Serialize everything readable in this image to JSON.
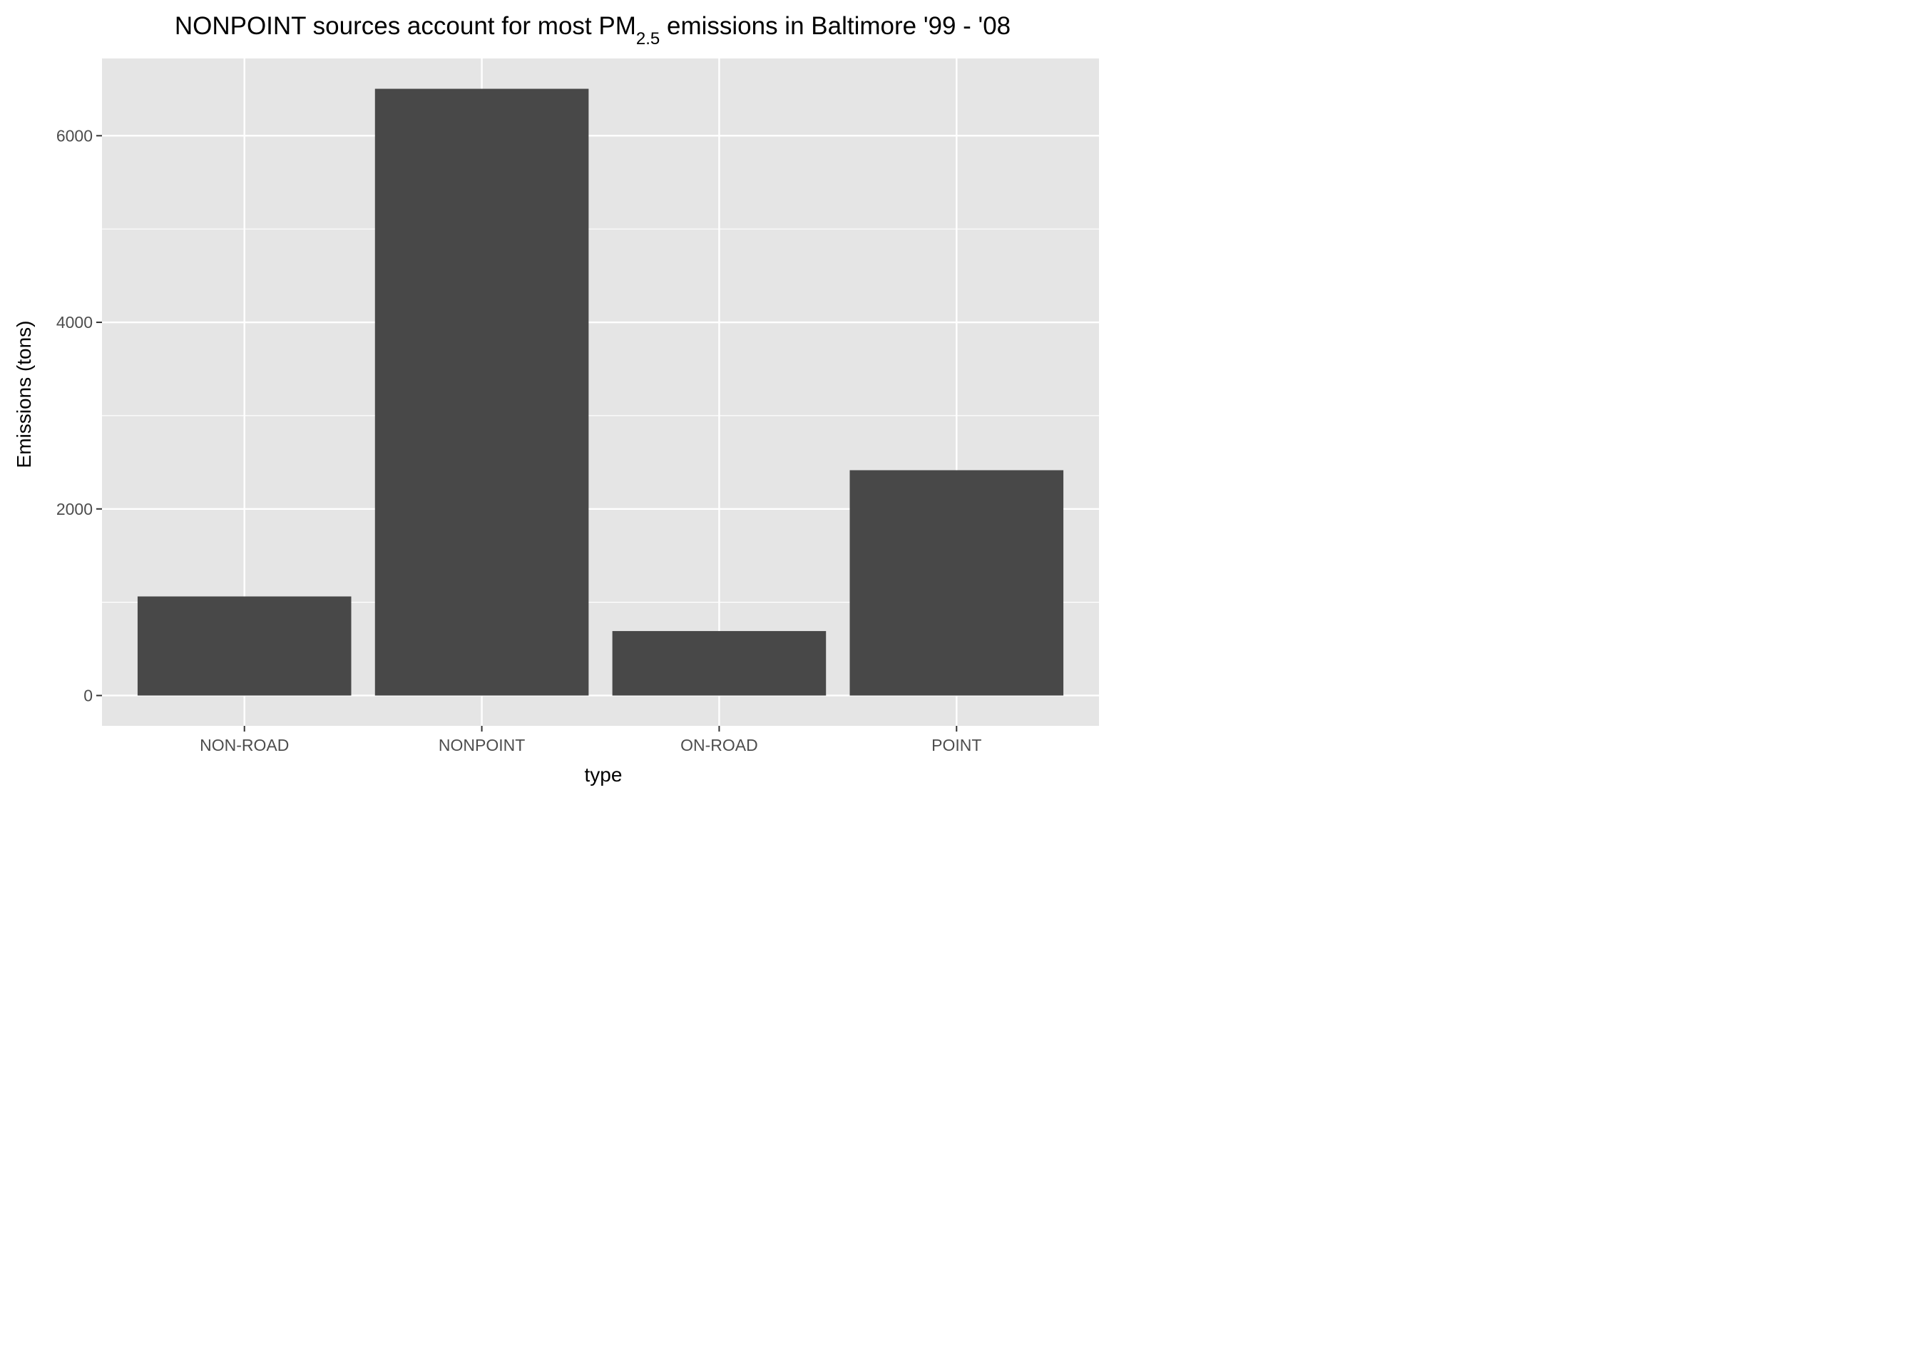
{
  "chart_data": {
    "type": "bar",
    "title": {
      "prefix": "NONPOINT sources account for most PM",
      "subscript": "2.5",
      "suffix": " emissions in Baltimore '99 - '08"
    },
    "xlabel": "type",
    "ylabel": "Emissions (tons)",
    "categories": [
      "NON-ROAD",
      "NONPOINT",
      "ON-ROAD",
      "POINT"
    ],
    "values": [
      1062,
      6503,
      691,
      2415
    ],
    "ylim": [
      -325,
      6828
    ],
    "y_ticks": [
      0,
      2000,
      4000,
      6000
    ],
    "y_minor_ticks": [
      1000,
      3000,
      5000
    ],
    "grid": true,
    "legend": "none",
    "colors": {
      "bar": "#484848",
      "panel_background": "#e5e5e5",
      "grid_line": "#ffffff",
      "tick_mark": "#333333"
    }
  }
}
